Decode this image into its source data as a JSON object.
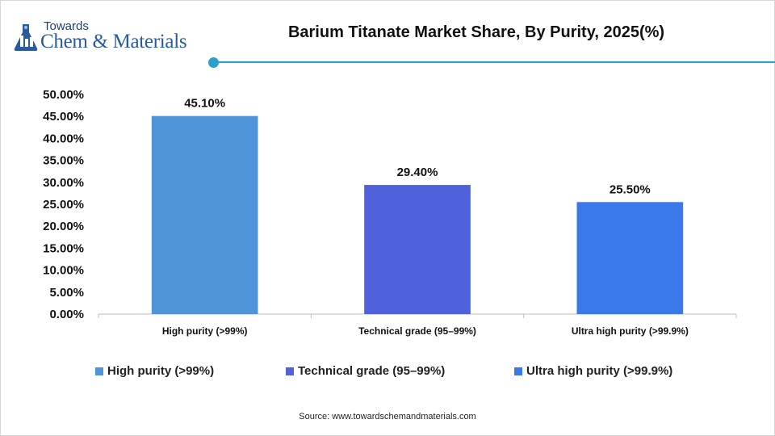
{
  "logo": {
    "top_text": "Towards",
    "main_text": "Chem & Materials",
    "icon": "flask-icon"
  },
  "chart_data": {
    "type": "bar",
    "title": "Barium Titanate Market Share, By Purity, 2025(%)",
    "categories": [
      "High purity (>99%)",
      "Technical grade (95–99%)",
      "Ultra high purity (>99.9%)"
    ],
    "values": [
      45.1,
      29.4,
      25.5
    ],
    "data_labels": [
      "45.10%",
      "29.40%",
      "25.50%"
    ],
    "colors": [
      "#4f93d9",
      "#4f62dc",
      "#3a79ea"
    ],
    "ylim": [
      0,
      50
    ],
    "yticks": [
      0,
      5,
      10,
      15,
      20,
      25,
      30,
      35,
      40,
      45,
      50
    ],
    "ytick_labels": [
      "0.00%",
      "5.00%",
      "10.00%",
      "15.00%",
      "20.00%",
      "25.00%",
      "30.00%",
      "35.00%",
      "40.00%",
      "45.00%",
      "50.00%"
    ],
    "xlabel": "",
    "ylabel": "",
    "grid": false,
    "legend_position": "bottom"
  },
  "legend": {
    "items": [
      {
        "label": "High purity (>99%)",
        "color": "#4f93d9"
      },
      {
        "label": "Technical grade (95–99%)",
        "color": "#4f62dc"
      },
      {
        "label": "Ultra high purity (>99.9%)",
        "color": "#3a79ea"
      }
    ]
  },
  "source": "Source: www.towardschemandmaterials.com"
}
